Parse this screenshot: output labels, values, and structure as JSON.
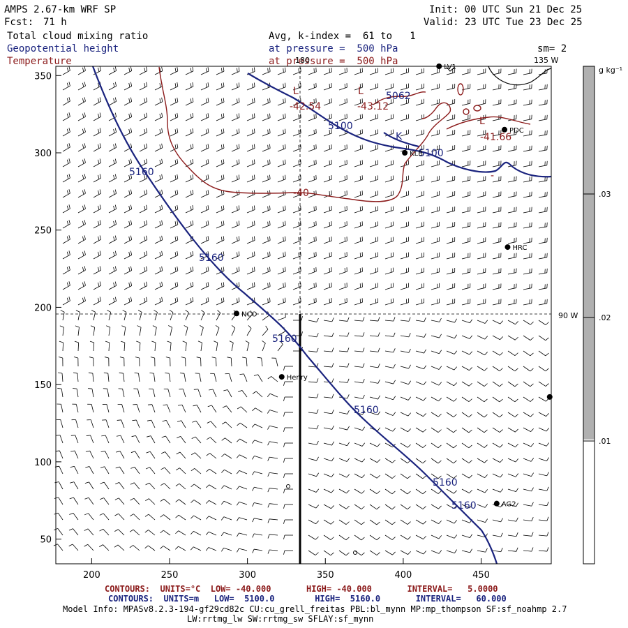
{
  "header": {
    "title": "AMPS 2.67-km WRF SP",
    "init": "Init: 00 UTC Sun 21 Dec 25",
    "fcst_label": "Fcst:",
    "fcst_value": "71 h",
    "valid": "Valid: 23 UTC Tue 23 Dec 25"
  },
  "fields": {
    "cloud": "Total cloud mixing ratio",
    "geopotential": "Geopotential height",
    "temperature": "Temperature",
    "avg_k": "Avg, k-index =  61 to   1",
    "pressure_geo": "at pressure =  500 hPa",
    "pressure_temp": "at pressure =  500 hPa",
    "sm": "sm= 2"
  },
  "colors": {
    "geopotential": "#1a237e",
    "temperature": "#8b1a1a",
    "cloud_fill": "#b0b0b0",
    "barbs": "#000000"
  },
  "axes": {
    "x_ticks": [
      "200",
      "250",
      "300",
      "350",
      "400",
      "450"
    ],
    "y_ticks": [
      "50",
      "100",
      "150",
      "200",
      "250",
      "300",
      "350"
    ],
    "x_range": [
      177,
      495
    ],
    "y_range": [
      34,
      356
    ]
  },
  "meridians": {
    "lon_180": "180",
    "lon_135w": "135 W",
    "lon_90w": "90 W"
  },
  "colorbar": {
    "units": "g kg⁻¹",
    "labels": [
      ".03",
      ".02",
      ".01"
    ],
    "range": [
      0,
      0.04
    ],
    "filled_above": 0.01
  },
  "stations": [
    {
      "id": "ncc",
      "label": "NCO",
      "x": 293,
      "y": 196
    },
    {
      "id": "henry",
      "label": "Henry",
      "x": 322,
      "y": 155
    },
    {
      "id": "hrc",
      "label": "HRC",
      "x": 467,
      "y": 239
    },
    {
      "id": "klb",
      "label": "KLB",
      "x": 401,
      "y": 300
    },
    {
      "id": "pdc",
      "label": "PDC",
      "x": 465,
      "y": 315
    },
    {
      "id": "ag2",
      "label": "AG2",
      "x": 460,
      "y": 73
    },
    {
      "id": "lv1",
      "label": "LV1",
      "x": 423,
      "y": 356
    },
    {
      "id": "east",
      "label": "",
      "x": 494,
      "y": 142
    }
  ],
  "contour_labels": {
    "geo_5160": [
      "5160",
      "5160",
      "5160",
      "5160",
      "5160",
      "5160"
    ],
    "geo_5100": [
      "5100",
      "5100"
    ],
    "geo_5062": "5062",
    "temp_m40": "-40",
    "temp_4254": "-42.54",
    "temp_4312": "-43.12",
    "temp_4166": "-41.66",
    "low_marks": [
      "L",
      "L",
      "L"
    ],
    "k_mark": "K",
    "minus_mark": "-"
  },
  "footer": {
    "line1": "CONTOURS:  UNITS=°C  LOW= -40.000       HIGH= -40.000       INTERVAL=   5.0000",
    "line2": "CONTOURS:  UNITS=m   LOW=  5100.0        HIGH=  5160.0       INTERVAL=   60.000",
    "line3": "Model Info: MPASv8.2.3-194-gf29cd82c CU:cu_grell_freitas PBL:bl_mynn MP:mp_thompson SF:sf_noahmp 2.7",
    "line4": "LW:rrtmg_lw SW:rrtmg_sw SFLAY:sf_mynn"
  }
}
